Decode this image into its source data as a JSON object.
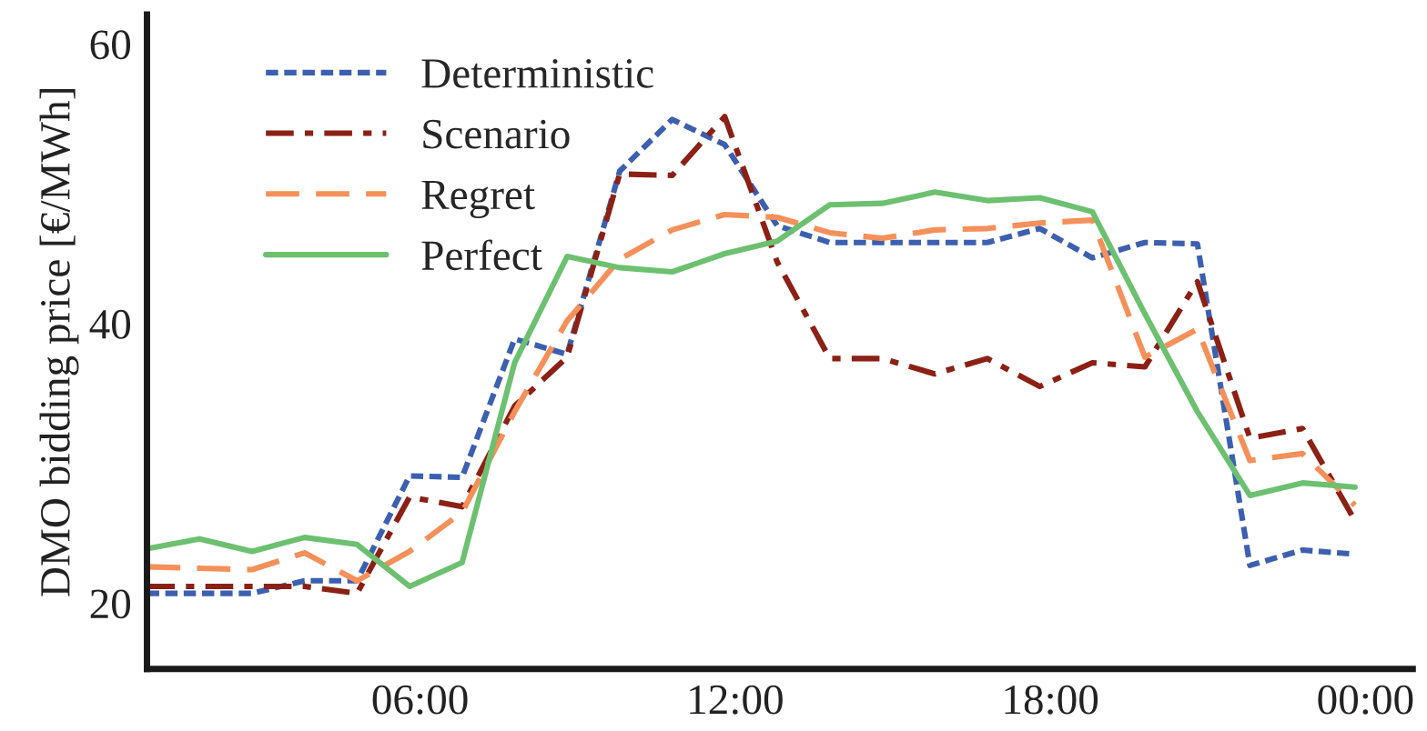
{
  "chart_data": {
    "type": "line",
    "ylabel": "DMO bidding price [€/MWh]",
    "x": [
      0.8,
      1.8,
      2.8,
      3.8,
      4.8,
      5.8,
      6.8,
      7.8,
      8.8,
      9.8,
      10.8,
      11.8,
      12.8,
      13.8,
      14.8,
      15.8,
      16.8,
      17.8,
      18.8,
      19.8,
      20.8,
      21.8,
      22.8,
      23.8
    ],
    "xlim": [
      0.8,
      24.9
    ],
    "xticks": [
      {
        "value": 6,
        "label": "06:00"
      },
      {
        "value": 12,
        "label": "12:00"
      },
      {
        "value": 18,
        "label": "18:00"
      },
      {
        "value": 24,
        "label": "00:00"
      }
    ],
    "ylim": [
      15.3,
      62.1
    ],
    "yticks": [
      20,
      40,
      60
    ],
    "grid": false,
    "legend": "top left",
    "marker": "none",
    "series": [
      {
        "name": "Deterministic",
        "color": "#3d5fb0",
        "line_style": "dotted",
        "values": [
          20.7,
          20.7,
          20.7,
          21.6,
          21.6,
          29.1,
          29.0,
          38.9,
          37.8,
          50.9,
          54.6,
          52.8,
          47.0,
          45.8,
          45.8,
          45.8,
          45.8,
          46.8,
          44.7,
          45.8,
          45.7,
          22.7,
          23.8,
          23.5
        ]
      },
      {
        "name": "Scenario",
        "color": "#8b2015",
        "line_style": "dashdot",
        "values": [
          21.2,
          21.2,
          21.2,
          21.2,
          20.7,
          27.6,
          26.9,
          34.1,
          37.6,
          50.7,
          50.6,
          54.8,
          44.4,
          37.5,
          37.5,
          36.4,
          37.5,
          35.5,
          37.2,
          36.9,
          43.0,
          31.8,
          32.5,
          25.9
        ]
      },
      {
        "name": "Regret",
        "color": "#f4905a",
        "line_style": "dashed",
        "values": [
          22.6,
          22.5,
          22.4,
          23.6,
          21.6,
          23.7,
          26.5,
          33.7,
          40.2,
          44.6,
          46.7,
          47.8,
          47.6,
          46.5,
          46.1,
          46.7,
          46.8,
          47.2,
          47.4,
          37.6,
          39.6,
          30.2,
          30.7,
          27.0
        ]
      },
      {
        "name": "Perfect",
        "color": "#6cc070",
        "line_style": "solid",
        "values": [
          23.9,
          24.6,
          23.7,
          24.7,
          24.2,
          21.2,
          22.9,
          37.2,
          44.8,
          44.0,
          43.7,
          45.0,
          45.9,
          48.5,
          48.6,
          49.4,
          48.8,
          49.0,
          48.0,
          40.7,
          33.7,
          27.7,
          28.6,
          28.3
        ]
      }
    ]
  }
}
